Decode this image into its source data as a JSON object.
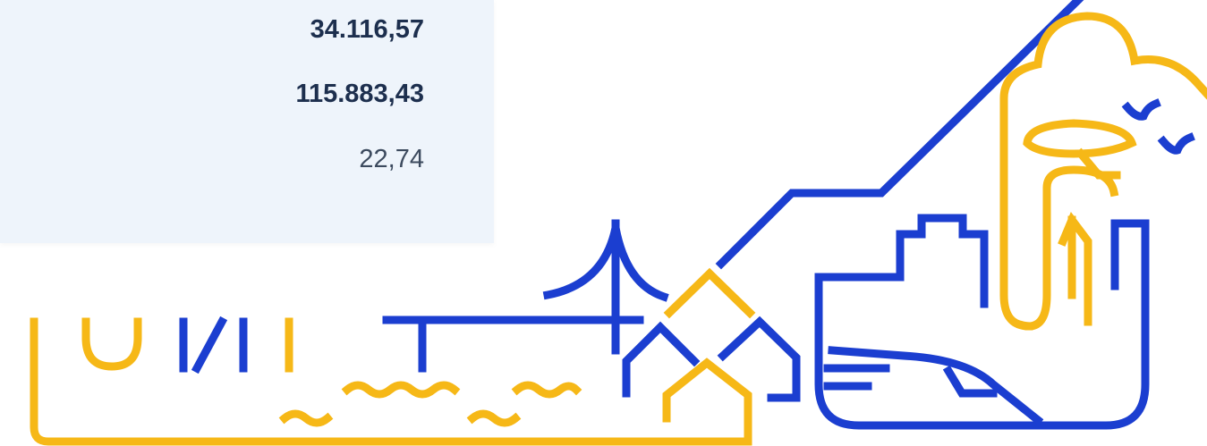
{
  "card": {
    "rows": [
      {
        "value": "34.116,57"
      },
      {
        "value": "115.883,43"
      },
      {
        "value": "22,74"
      }
    ]
  }
}
